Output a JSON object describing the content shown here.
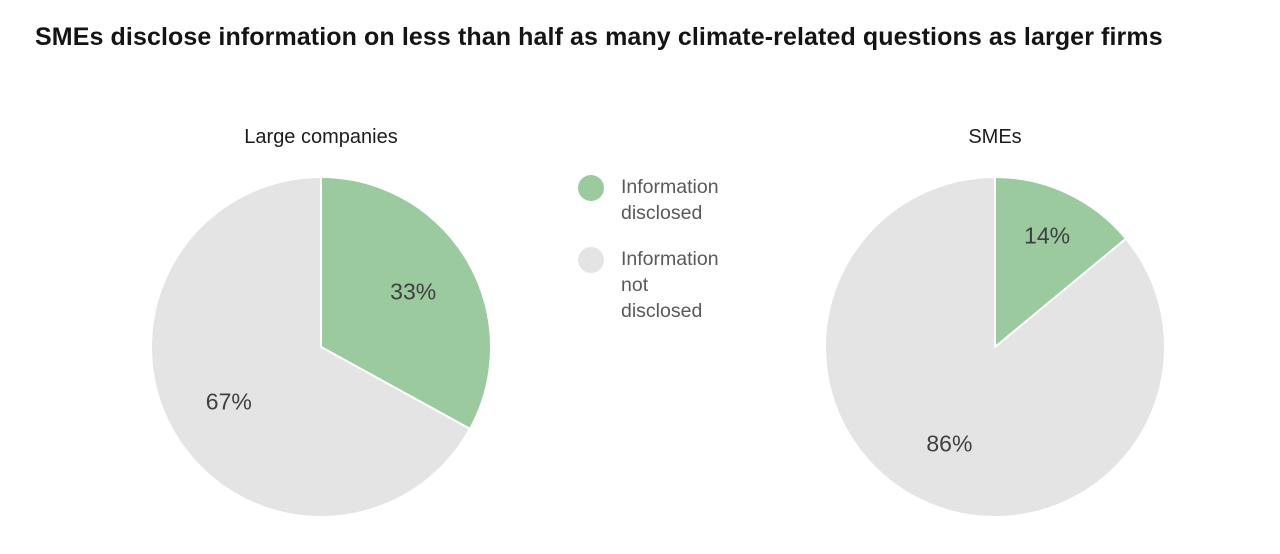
{
  "page": {
    "background": "#ffffff"
  },
  "title": "SMEs disclose information on less than half as many climate-related questions as larger firms",
  "colors": {
    "disclosed_green": "#9aca9e",
    "not_disclosed_gray": "#e4e4e4",
    "title_text": "#141414",
    "label_text": "#404040",
    "legend_text": "#595959"
  },
  "legend": {
    "items": [
      {
        "name": "information-disclosed",
        "label": "Information\ndisclosed",
        "color": "#9aca9e"
      },
      {
        "name": "information-not-disclosed",
        "label": "Information\nnot\ndisclosed",
        "color": "#e4e4e4"
      }
    ]
  },
  "chart_data": [
    {
      "type": "pie",
      "title": "Large companies",
      "start_angle_deg": 0,
      "direction": "clockwise",
      "slices": [
        {
          "name": "Information disclosed",
          "value": 33,
          "label": "33%",
          "color": "#9aca9e"
        },
        {
          "name": "Information not disclosed",
          "value": 67,
          "label": "67%",
          "color": "#e4e4e4"
        }
      ]
    },
    {
      "type": "pie",
      "title": "SMEs",
      "start_angle_deg": 0,
      "direction": "clockwise",
      "slices": [
        {
          "name": "Information disclosed",
          "value": 14,
          "label": "14%",
          "color": "#9aca9e"
        },
        {
          "name": "Information not disclosed",
          "value": 86,
          "label": "86%",
          "color": "#e4e4e4"
        }
      ]
    }
  ]
}
